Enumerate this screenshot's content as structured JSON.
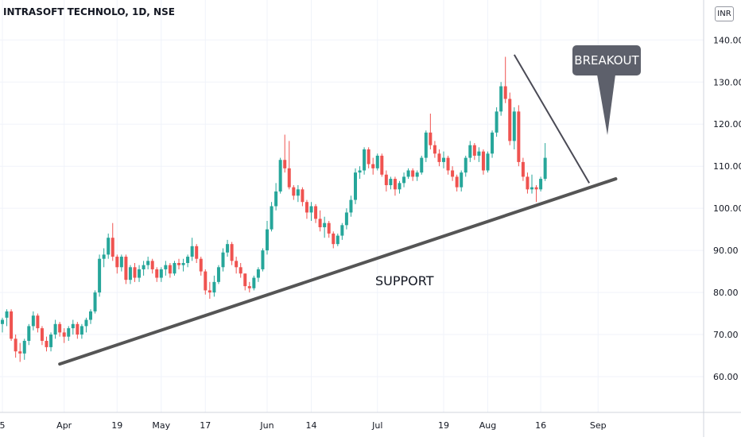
{
  "chart_title": "INTRASOFT TECHNOLO, 1D, NSE",
  "currency_label": "INR",
  "annotations": {
    "breakout": "BREAKOUT",
    "support": "SUPPORT"
  },
  "colors": {
    "up": "#26a69a",
    "down": "#ef5350",
    "trendline": "#555555",
    "callout_bg": "#5d606b",
    "grid": "#f0f3fa"
  },
  "chart_data": {
    "type": "candlestick",
    "title": "INTRASOFT TECHNOLO, 1D, NSE",
    "currency": "INR",
    "y_axis": {
      "ticks": [
        60,
        70,
        80,
        90,
        100,
        110,
        120,
        130,
        140
      ],
      "tick_labels": [
        "60.00",
        "70.00",
        "80.00",
        "90.00",
        "100.00",
        "110.00",
        "120.00",
        "130.00",
        "140.00"
      ],
      "ylim": [
        51.5,
        149.5
      ]
    },
    "x_axis": {
      "tick_labels": [
        "5",
        "Apr",
        "19",
        "May",
        "17",
        "Jun",
        "14",
        "Jul",
        "19",
        "Aug",
        "16",
        "Sep"
      ],
      "tick_bar_index": [
        0,
        14,
        26,
        36,
        46,
        60,
        70,
        85,
        100,
        110,
        122,
        135
      ]
    },
    "candles": [
      {
        "o": 72.5,
        "h": 74.0,
        "l": 70.5,
        "c": 73.5
      },
      {
        "o": 74.0,
        "h": 76.0,
        "l": 72.0,
        "c": 75.5
      },
      {
        "o": 75.5,
        "h": 76.0,
        "l": 68.5,
        "c": 69.0
      },
      {
        "o": 69.0,
        "h": 70.0,
        "l": 64.5,
        "c": 66.0
      },
      {
        "o": 66.0,
        "h": 68.0,
        "l": 63.5,
        "c": 65.5
      },
      {
        "o": 65.5,
        "h": 69.0,
        "l": 64.0,
        "c": 68.5
      },
      {
        "o": 68.5,
        "h": 72.5,
        "l": 67.5,
        "c": 72.0
      },
      {
        "o": 72.0,
        "h": 75.5,
        "l": 71.0,
        "c": 74.5
      },
      {
        "o": 74.5,
        "h": 75.0,
        "l": 70.5,
        "c": 71.5
      },
      {
        "o": 71.5,
        "h": 72.0,
        "l": 67.5,
        "c": 68.5
      },
      {
        "o": 68.5,
        "h": 69.5,
        "l": 66.0,
        "c": 67.0
      },
      {
        "o": 67.0,
        "h": 70.5,
        "l": 66.0,
        "c": 70.0
      },
      {
        "o": 70.0,
        "h": 73.5,
        "l": 69.0,
        "c": 72.5
      },
      {
        "o": 72.5,
        "h": 73.0,
        "l": 69.5,
        "c": 70.5
      },
      {
        "o": 70.5,
        "h": 71.5,
        "l": 68.0,
        "c": 69.5
      },
      {
        "o": 69.5,
        "h": 72.0,
        "l": 68.5,
        "c": 71.5
      },
      {
        "o": 71.5,
        "h": 73.5,
        "l": 70.0,
        "c": 72.5
      },
      {
        "o": 72.5,
        "h": 73.0,
        "l": 69.0,
        "c": 70.0
      },
      {
        "o": 70.0,
        "h": 72.5,
        "l": 69.0,
        "c": 72.0
      },
      {
        "o": 72.0,
        "h": 74.0,
        "l": 70.5,
        "c": 73.5
      },
      {
        "o": 73.5,
        "h": 76.0,
        "l": 72.5,
        "c": 75.5
      },
      {
        "o": 75.5,
        "h": 80.5,
        "l": 75.0,
        "c": 80.0
      },
      {
        "o": 80.0,
        "h": 89.0,
        "l": 79.0,
        "c": 88.0
      },
      {
        "o": 88.0,
        "h": 90.5,
        "l": 86.0,
        "c": 89.0
      },
      {
        "o": 89.0,
        "h": 94.0,
        "l": 88.0,
        "c": 93.0
      },
      {
        "o": 93.0,
        "h": 96.5,
        "l": 87.5,
        "c": 88.5
      },
      {
        "o": 88.5,
        "h": 89.0,
        "l": 84.5,
        "c": 86.0
      },
      {
        "o": 86.0,
        "h": 89.0,
        "l": 85.0,
        "c": 88.5
      },
      {
        "o": 88.5,
        "h": 89.0,
        "l": 82.0,
        "c": 83.0
      },
      {
        "o": 83.0,
        "h": 86.5,
        "l": 82.0,
        "c": 86.0
      },
      {
        "o": 86.0,
        "h": 87.0,
        "l": 82.5,
        "c": 83.5
      },
      {
        "o": 83.5,
        "h": 86.5,
        "l": 82.5,
        "c": 85.5
      },
      {
        "o": 85.5,
        "h": 87.5,
        "l": 84.0,
        "c": 86.5
      },
      {
        "o": 86.5,
        "h": 88.5,
        "l": 85.5,
        "c": 87.5
      },
      {
        "o": 87.5,
        "h": 88.0,
        "l": 84.5,
        "c": 85.5
      },
      {
        "o": 85.5,
        "h": 86.0,
        "l": 82.5,
        "c": 83.5
      },
      {
        "o": 83.5,
        "h": 86.0,
        "l": 82.5,
        "c": 85.5
      },
      {
        "o": 85.5,
        "h": 87.5,
        "l": 84.0,
        "c": 86.5
      },
      {
        "o": 86.5,
        "h": 87.0,
        "l": 83.5,
        "c": 84.5
      },
      {
        "o": 84.5,
        "h": 87.5,
        "l": 84.0,
        "c": 87.0
      },
      {
        "o": 87.0,
        "h": 88.0,
        "l": 85.5,
        "c": 86.5
      },
      {
        "o": 86.5,
        "h": 88.0,
        "l": 85.0,
        "c": 87.0
      },
      {
        "o": 87.0,
        "h": 89.0,
        "l": 86.0,
        "c": 88.5
      },
      {
        "o": 88.5,
        "h": 93.0,
        "l": 87.5,
        "c": 91.0
      },
      {
        "o": 91.0,
        "h": 91.5,
        "l": 87.0,
        "c": 88.0
      },
      {
        "o": 88.0,
        "h": 88.5,
        "l": 84.0,
        "c": 85.0
      },
      {
        "o": 85.0,
        "h": 85.5,
        "l": 79.5,
        "c": 80.5
      },
      {
        "o": 80.5,
        "h": 82.5,
        "l": 78.5,
        "c": 80.0
      },
      {
        "o": 80.0,
        "h": 84.0,
        "l": 79.0,
        "c": 82.5
      },
      {
        "o": 82.5,
        "h": 86.5,
        "l": 82.0,
        "c": 86.0
      },
      {
        "o": 86.0,
        "h": 90.5,
        "l": 85.0,
        "c": 89.5
      },
      {
        "o": 89.5,
        "h": 92.5,
        "l": 88.5,
        "c": 91.5
      },
      {
        "o": 91.5,
        "h": 92.0,
        "l": 86.5,
        "c": 87.5
      },
      {
        "o": 87.5,
        "h": 88.5,
        "l": 84.5,
        "c": 86.0
      },
      {
        "o": 86.0,
        "h": 87.0,
        "l": 83.5,
        "c": 84.5
      },
      {
        "o": 84.5,
        "h": 84.5,
        "l": 80.5,
        "c": 81.5
      },
      {
        "o": 81.5,
        "h": 82.5,
        "l": 80.0,
        "c": 81.0
      },
      {
        "o": 81.0,
        "h": 84.0,
        "l": 80.5,
        "c": 83.5
      },
      {
        "o": 83.5,
        "h": 86.0,
        "l": 82.5,
        "c": 85.5
      },
      {
        "o": 85.5,
        "h": 90.5,
        "l": 85.0,
        "c": 90.0
      },
      {
        "o": 90.0,
        "h": 97.0,
        "l": 89.0,
        "c": 95.0
      },
      {
        "o": 95.0,
        "h": 101.5,
        "l": 94.5,
        "c": 100.5
      },
      {
        "o": 100.5,
        "h": 106.0,
        "l": 99.5,
        "c": 104.0
      },
      {
        "o": 104.0,
        "h": 112.0,
        "l": 103.5,
        "c": 111.5
      },
      {
        "o": 111.5,
        "h": 117.5,
        "l": 108.5,
        "c": 109.5
      },
      {
        "o": 109.5,
        "h": 116.0,
        "l": 104.5,
        "c": 105.0
      },
      {
        "o": 105.0,
        "h": 105.5,
        "l": 102.0,
        "c": 103.0
      },
      {
        "o": 103.0,
        "h": 105.5,
        "l": 101.5,
        "c": 104.5
      },
      {
        "o": 104.5,
        "h": 105.0,
        "l": 100.5,
        "c": 101.5
      },
      {
        "o": 101.5,
        "h": 102.0,
        "l": 97.5,
        "c": 99.0
      },
      {
        "o": 99.0,
        "h": 101.5,
        "l": 97.0,
        "c": 100.5
      },
      {
        "o": 100.5,
        "h": 101.0,
        "l": 96.5,
        "c": 97.5
      },
      {
        "o": 97.5,
        "h": 99.5,
        "l": 94.5,
        "c": 95.5
      },
      {
        "o": 95.5,
        "h": 98.0,
        "l": 93.0,
        "c": 96.5
      },
      {
        "o": 96.5,
        "h": 97.0,
        "l": 93.0,
        "c": 94.0
      },
      {
        "o": 94.0,
        "h": 94.5,
        "l": 90.5,
        "c": 91.5
      },
      {
        "o": 91.5,
        "h": 94.0,
        "l": 91.0,
        "c": 93.5
      },
      {
        "o": 93.5,
        "h": 96.5,
        "l": 92.5,
        "c": 96.0
      },
      {
        "o": 96.0,
        "h": 100.0,
        "l": 95.0,
        "c": 99.0
      },
      {
        "o": 99.0,
        "h": 103.0,
        "l": 98.0,
        "c": 102.0
      },
      {
        "o": 102.0,
        "h": 109.5,
        "l": 101.0,
        "c": 108.5
      },
      {
        "o": 108.5,
        "h": 110.0,
        "l": 107.0,
        "c": 109.0
      },
      {
        "o": 109.0,
        "h": 114.5,
        "l": 108.0,
        "c": 114.0
      },
      {
        "o": 114.0,
        "h": 114.5,
        "l": 109.5,
        "c": 110.5
      },
      {
        "o": 110.5,
        "h": 112.0,
        "l": 108.0,
        "c": 109.5
      },
      {
        "o": 109.5,
        "h": 113.0,
        "l": 109.0,
        "c": 112.5
      },
      {
        "o": 112.5,
        "h": 113.0,
        "l": 107.5,
        "c": 108.0
      },
      {
        "o": 108.0,
        "h": 109.0,
        "l": 104.0,
        "c": 105.5
      },
      {
        "o": 105.5,
        "h": 107.5,
        "l": 104.5,
        "c": 107.0
      },
      {
        "o": 107.0,
        "h": 107.5,
        "l": 103.0,
        "c": 104.5
      },
      {
        "o": 104.5,
        "h": 106.5,
        "l": 103.5,
        "c": 106.0
      },
      {
        "o": 106.0,
        "h": 108.5,
        "l": 105.0,
        "c": 107.5
      },
      {
        "o": 107.5,
        "h": 109.5,
        "l": 107.0,
        "c": 109.0
      },
      {
        "o": 109.0,
        "h": 109.5,
        "l": 106.5,
        "c": 107.5
      },
      {
        "o": 107.5,
        "h": 109.0,
        "l": 106.5,
        "c": 108.5
      },
      {
        "o": 108.5,
        "h": 112.5,
        "l": 108.0,
        "c": 112.0
      },
      {
        "o": 112.0,
        "h": 118.5,
        "l": 111.0,
        "c": 118.0
      },
      {
        "o": 118.0,
        "h": 122.5,
        "l": 114.0,
        "c": 115.0
      },
      {
        "o": 115.0,
        "h": 116.0,
        "l": 112.0,
        "c": 113.0
      },
      {
        "o": 113.0,
        "h": 114.0,
        "l": 110.0,
        "c": 111.0
      },
      {
        "o": 111.0,
        "h": 113.5,
        "l": 109.5,
        "c": 112.0
      },
      {
        "o": 112.0,
        "h": 112.5,
        "l": 108.0,
        "c": 109.0
      },
      {
        "o": 109.0,
        "h": 110.0,
        "l": 106.5,
        "c": 107.5
      },
      {
        "o": 107.5,
        "h": 108.0,
        "l": 104.0,
        "c": 105.0
      },
      {
        "o": 105.0,
        "h": 109.0,
        "l": 104.0,
        "c": 108.5
      },
      {
        "o": 108.5,
        "h": 112.5,
        "l": 107.5,
        "c": 112.0
      },
      {
        "o": 112.0,
        "h": 116.0,
        "l": 111.0,
        "c": 115.0
      },
      {
        "o": 115.0,
        "h": 115.5,
        "l": 111.5,
        "c": 112.5
      },
      {
        "o": 112.5,
        "h": 114.5,
        "l": 111.0,
        "c": 113.5
      },
      {
        "o": 113.5,
        "h": 114.0,
        "l": 108.0,
        "c": 109.0
      },
      {
        "o": 109.0,
        "h": 113.5,
        "l": 108.5,
        "c": 113.0
      },
      {
        "o": 113.0,
        "h": 118.5,
        "l": 112.0,
        "c": 118.0
      },
      {
        "o": 118.0,
        "h": 124.0,
        "l": 117.0,
        "c": 123.0
      },
      {
        "o": 123.0,
        "h": 130.0,
        "l": 122.0,
        "c": 129.0
      },
      {
        "o": 129.0,
        "h": 136.0,
        "l": 125.0,
        "c": 126.0
      },
      {
        "o": 126.0,
        "h": 127.5,
        "l": 115.0,
        "c": 116.0
      },
      {
        "o": 116.0,
        "h": 124.0,
        "l": 114.0,
        "c": 123.0
      },
      {
        "o": 123.0,
        "h": 124.5,
        "l": 110.0,
        "c": 111.0
      },
      {
        "o": 111.0,
        "h": 112.0,
        "l": 106.5,
        "c": 107.5
      },
      {
        "o": 107.5,
        "h": 108.5,
        "l": 103.5,
        "c": 104.5
      },
      {
        "o": 104.5,
        "h": 108.0,
        "l": 103.5,
        "c": 105.0
      },
      {
        "o": 105.0,
        "h": 105.5,
        "l": 101.5,
        "c": 104.5
      },
      {
        "o": 104.5,
        "h": 107.5,
        "l": 104.0,
        "c": 107.0
      },
      {
        "o": 107.0,
        "h": 115.5,
        "l": 106.5,
        "c": 112.0
      }
    ],
    "support_line": {
      "from": {
        "bar": 13,
        "price": 63.0
      },
      "to": {
        "bar": 139,
        "price": 107.0
      }
    },
    "breakout_line": {
      "from": {
        "bar": 116,
        "price": 136.5
      },
      "to": {
        "bar": 133,
        "price": 106.0
      }
    }
  }
}
